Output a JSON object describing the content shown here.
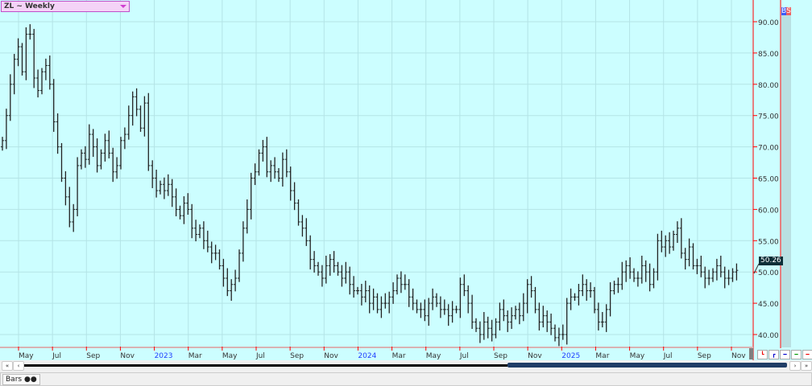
{
  "header": {
    "title": "ZL ~ Weekly",
    "buy_label": "B",
    "sell_label": "S"
  },
  "last_price_label": "50.26",
  "colors": {
    "background": "#ccfeff",
    "grid": "#b4e4e6",
    "bar": "#222222",
    "axis": "#ff0000",
    "title_bg": "#f4d3f7",
    "last_price_bg": "#0d2f38",
    "scroll_thumb": "#1f3d66"
  },
  "chart_data": {
    "type": "ohlc-bar",
    "symbol": "ZL",
    "interval": "Weekly",
    "ylim": [
      38.5,
      93
    ],
    "y_ticks": [
      "90.00",
      "85.00",
      "80.00",
      "75.00",
      "70.00",
      "65.00",
      "60.00",
      "55.00",
      "50.00",
      "45.00",
      "40.00"
    ],
    "y_tick_values": [
      90,
      85,
      80,
      75,
      70,
      65,
      60,
      55,
      50,
      45,
      40
    ],
    "x_ticks": [
      {
        "label": "May",
        "date": "2022-05",
        "year": false
      },
      {
        "label": "Jul",
        "date": "2022-07",
        "year": false
      },
      {
        "label": "Sep",
        "date": "2022-09",
        "year": false
      },
      {
        "label": "Nov",
        "date": "2022-11",
        "year": false
      },
      {
        "label": "2023",
        "date": "2023-01",
        "year": true
      },
      {
        "label": "Mar",
        "date": "2023-03",
        "year": false
      },
      {
        "label": "May",
        "date": "2023-05",
        "year": false
      },
      {
        "label": "Jul",
        "date": "2023-07",
        "year": false
      },
      {
        "label": "Sep",
        "date": "2023-09",
        "year": false
      },
      {
        "label": "Nov",
        "date": "2023-11",
        "year": false
      },
      {
        "label": "2024",
        "date": "2024-01",
        "year": true
      },
      {
        "label": "Mar",
        "date": "2024-03",
        "year": false
      },
      {
        "label": "May",
        "date": "2024-05",
        "year": false
      },
      {
        "label": "Jul",
        "date": "2024-07",
        "year": false
      },
      {
        "label": "Sep",
        "date": "2024-09",
        "year": false
      },
      {
        "label": "Nov",
        "date": "2024-11",
        "year": false
      },
      {
        "label": "2025",
        "date": "2025-01",
        "year": true
      },
      {
        "label": "Mar",
        "date": "2025-03",
        "year": false
      },
      {
        "label": "May",
        "date": "2025-05",
        "year": false
      },
      {
        "label": "Jul",
        "date": "2025-07",
        "year": false
      },
      {
        "label": "Sep",
        "date": "2025-09",
        "year": false
      },
      {
        "label": "Nov",
        "date": "2025-11",
        "year": false
      }
    ],
    "weekly_close": [
      71,
      75,
      80,
      84,
      86,
      82,
      88,
      88,
      81,
      79,
      82,
      83,
      80,
      74,
      70,
      65,
      62,
      58,
      60,
      67,
      69,
      68,
      72,
      70,
      67,
      69,
      71,
      69,
      66,
      67,
      71,
      72,
      75,
      78,
      76,
      73,
      77,
      67,
      65,
      63,
      64,
      63,
      64,
      62,
      60,
      59,
      61,
      60,
      57,
      56,
      57,
      55,
      54,
      53,
      53,
      51,
      49,
      47,
      48,
      49,
      53,
      57,
      60,
      65,
      66,
      69,
      70,
      66,
      67,
      66,
      65,
      68,
      66,
      63,
      61,
      58,
      57,
      55,
      52,
      51,
      50,
      49,
      51,
      52,
      51,
      50,
      49,
      50,
      48,
      47,
      47,
      46,
      47,
      45,
      46,
      44,
      45,
      45,
      46,
      47,
      49,
      48,
      48,
      46,
      45,
      44,
      44,
      43,
      45,
      46,
      45,
      44,
      44,
      43,
      44,
      44,
      48,
      47,
      45,
      42,
      41,
      40,
      42,
      41,
      40,
      42,
      44,
      43,
      42,
      43,
      44,
      43,
      45,
      48,
      47,
      44,
      42,
      43,
      42,
      41,
      39.5,
      40,
      40,
      45,
      46,
      46,
      47,
      48,
      47,
      47,
      44,
      42,
      42,
      44,
      47,
      48,
      48,
      50,
      51,
      50,
      49,
      49,
      51,
      50,
      48,
      50,
      55,
      54,
      55,
      54,
      56,
      57,
      53,
      52,
      54,
      51,
      51,
      50,
      49,
      49,
      50,
      51,
      50,
      49,
      49,
      50,
      50.26
    ]
  },
  "footer": {
    "bars_label": "Bars"
  },
  "nav": {
    "first": "«",
    "prev": "‹",
    "next": "›",
    "last": "»"
  }
}
